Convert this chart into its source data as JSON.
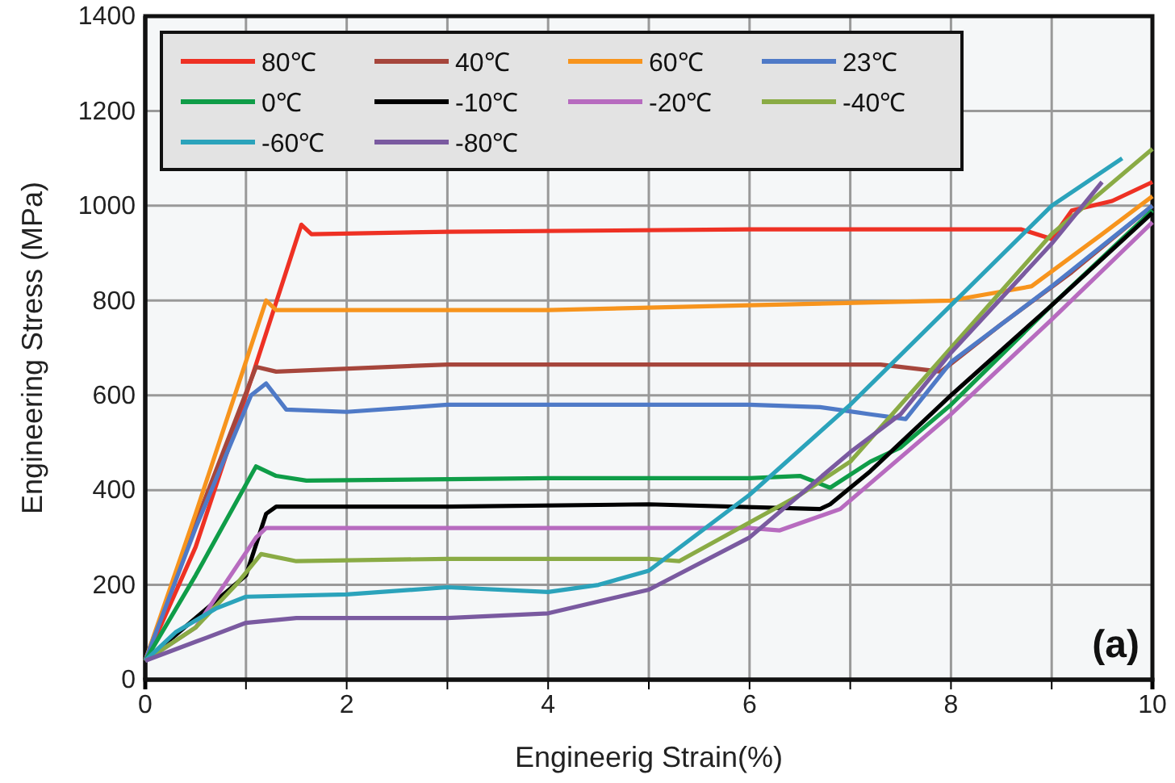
{
  "chart_data": {
    "type": "line",
    "xlabel": "Engineerig Strain(%)",
    "ylabel": "Engineering Stress (MPa)",
    "xlim": [
      0,
      10
    ],
    "ylim": [
      0,
      1400
    ],
    "xticks": [
      0,
      {
        "value": 1,
        "label": null
      },
      2,
      {
        "value": 3,
        "label": null
      },
      4,
      {
        "value": 5,
        "label": null
      },
      6,
      {
        "value": 7,
        "label": null
      },
      8,
      {
        "value": 9,
        "label": null
      },
      10
    ],
    "yticks": [
      0,
      200,
      400,
      600,
      800,
      1000,
      1200,
      1400
    ],
    "grid": true,
    "legend": "top left",
    "line_style": "solid",
    "marker": "none",
    "annotations": [
      "(a)"
    ],
    "series": [
      {
        "name": "80℃",
        "color": "#ee3124",
        "x": [
          0,
          0.5,
          1.0,
          1.55,
          1.65,
          3,
          6,
          8.7,
          9.0,
          9.2,
          9.6,
          10
        ],
        "values": [
          40,
          280,
          600,
          960,
          940,
          945,
          950,
          950,
          930,
          990,
          1010,
          1050
        ]
      },
      {
        "name": "40℃",
        "color": "#a6463c",
        "x": [
          0,
          0.5,
          1.1,
          1.3,
          3,
          6,
          7.3,
          7.9,
          8.5,
          9.2,
          10
        ],
        "values": [
          40,
          330,
          660,
          650,
          665,
          665,
          665,
          650,
          750,
          860,
          1000
        ]
      },
      {
        "name": "60℃",
        "color": "#f7941d",
        "x": [
          0,
          0.5,
          1.2,
          1.3,
          4,
          6,
          8,
          8.8,
          9.5,
          10
        ],
        "values": [
          40,
          350,
          800,
          780,
          780,
          790,
          800,
          830,
          940,
          1020
        ]
      },
      {
        "name": "23℃",
        "color": "#4f7ac7",
        "x": [
          0,
          0.5,
          1.05,
          1.2,
          1.4,
          2,
          3,
          6,
          6.7,
          7.2,
          7.55,
          8,
          9,
          10
        ],
        "values": [
          40,
          320,
          600,
          625,
          570,
          565,
          580,
          580,
          575,
          560,
          550,
          670,
          830,
          1000
        ]
      },
      {
        "name": "0℃",
        "color": "#0f9d48",
        "x": [
          0,
          0.5,
          1.1,
          1.3,
          1.6,
          4,
          6,
          6.5,
          6.8,
          7.2,
          7.5,
          8,
          9,
          10
        ],
        "values": [
          40,
          220,
          450,
          430,
          420,
          425,
          425,
          430,
          405,
          460,
          490,
          580,
          790,
          990
        ]
      },
      {
        "name": "-10℃",
        "color": "#000000",
        "x": [
          0,
          1.0,
          1.2,
          1.3,
          3,
          5,
          6.7,
          6.8,
          7.2,
          8,
          9,
          10
        ],
        "values": [
          40,
          220,
          350,
          365,
          365,
          370,
          360,
          370,
          440,
          600,
          790,
          985
        ]
      },
      {
        "name": "-20℃",
        "color": "#b76bbf",
        "x": [
          0,
          0.5,
          1.1,
          1.2,
          3,
          6,
          6.3,
          6.9,
          8,
          9,
          10
        ],
        "values": [
          40,
          110,
          300,
          320,
          320,
          320,
          315,
          360,
          560,
          760,
          965
        ]
      },
      {
        "name": "-40℃",
        "color": "#8aab45",
        "x": [
          0,
          0.5,
          0.9,
          1.15,
          1.5,
          3,
          5,
          5.3,
          6.5,
          7,
          8,
          9,
          10
        ],
        "values": [
          40,
          110,
          200,
          265,
          250,
          255,
          255,
          250,
          390,
          460,
          700,
          940,
          1120
        ]
      },
      {
        "name": "-60℃",
        "color": "#2ba3bb",
        "x": [
          0,
          0.3,
          0.7,
          1.0,
          2,
          3,
          4,
          4.5,
          5,
          6,
          7,
          8,
          9,
          9.7
        ],
        "values": [
          40,
          100,
          150,
          175,
          180,
          195,
          185,
          200,
          230,
          390,
          580,
          790,
          1000,
          1100
        ]
      },
      {
        "name": "-80℃",
        "color": "#7a5aa0",
        "x": [
          0,
          0.5,
          1.0,
          1.5,
          3,
          4,
          5,
          6,
          7,
          7.5,
          8,
          9,
          9.5
        ],
        "values": [
          40,
          80,
          120,
          130,
          130,
          140,
          190,
          300,
          480,
          560,
          690,
          920,
          1050
        ]
      }
    ]
  }
}
